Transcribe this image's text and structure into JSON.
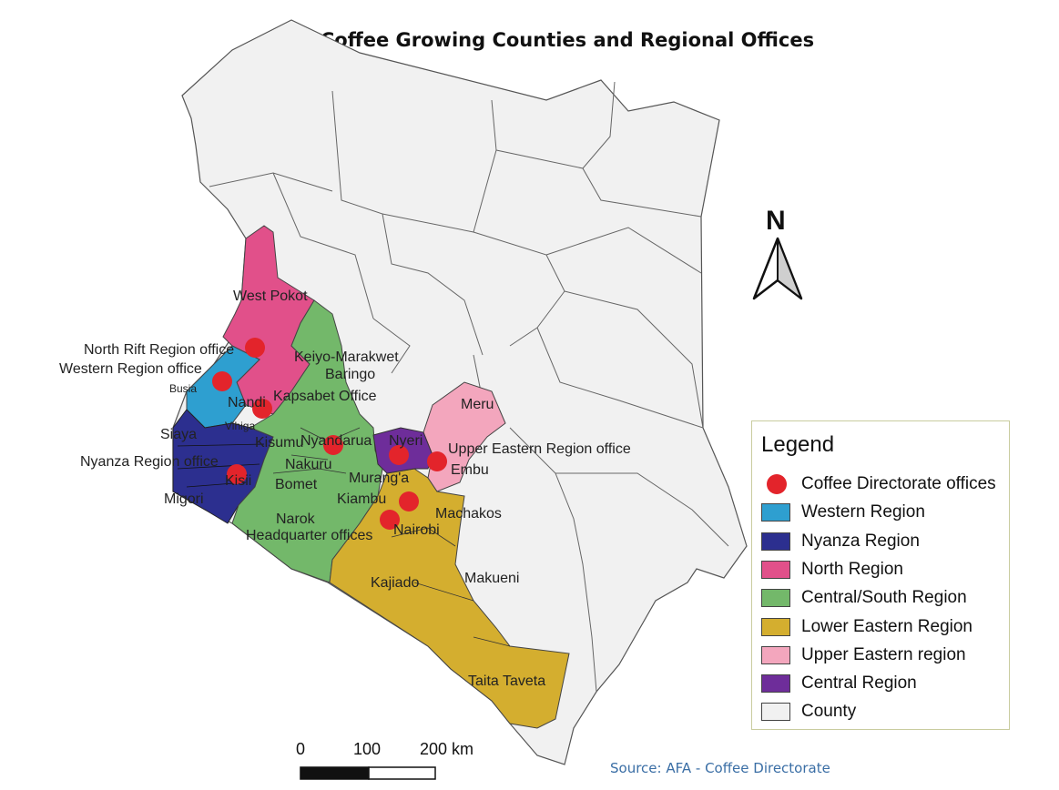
{
  "title": "Coffee Growing Counties and Regional Offices",
  "source": "Source: AFA - Coffee Directorate",
  "north_arrow": {
    "label": "N"
  },
  "scale_bar": {
    "labels": [
      "0",
      "100",
      "200 km"
    ]
  },
  "colors": {
    "western": "#2e9fd0",
    "nyanza": "#2c2f8f",
    "north": "#e1508a",
    "central_south": "#73b86a",
    "lower_eastern": "#d4ae2f",
    "upper_eastern": "#f3a6bd",
    "central": "#6e2d9a",
    "county": "#f1f1f1",
    "office": "#e3242b"
  },
  "legend": {
    "title": "Legend",
    "items": [
      {
        "label": "Coffee Directorate offices",
        "symbol": "dot",
        "color": "#e3242b"
      },
      {
        "label": "Western Region",
        "symbol": "swatch",
        "color": "#2e9fd0"
      },
      {
        "label": "Nyanza Region",
        "symbol": "swatch",
        "color": "#2c2f8f"
      },
      {
        "label": "North Region",
        "symbol": "swatch",
        "color": "#e1508a"
      },
      {
        "label": "Central/South Region",
        "symbol": "swatch",
        "color": "#73b86a"
      },
      {
        "label": "Lower Eastern Region",
        "symbol": "swatch",
        "color": "#d4ae2f"
      },
      {
        "label": "Upper Eastern region",
        "symbol": "swatch",
        "color": "#f3a6bd"
      },
      {
        "label": "Central Region",
        "symbol": "swatch",
        "color": "#6e2d9a"
      },
      {
        "label": "County",
        "symbol": "swatch",
        "color": "#f1f1f1"
      }
    ]
  },
  "labels": {
    "west_pokot": "West Pokot",
    "north_rift_office": "North Rift Region office",
    "keiyo_marakwet": "Keiyo-Marakwet",
    "western_office": "Western Region office",
    "baringo": "Baringo",
    "busia": "Busia",
    "nandi": "Nandi",
    "kapsabet_office": "Kapsabet Office",
    "meru": "Meru",
    "siaya": "Siaya",
    "vihiga": "Vihiga",
    "kisumu": "Kisumu",
    "nyandarua": "Nyandarua",
    "nyeri": "Nyeri",
    "upper_eastern_office": "Upper Eastern Region office",
    "nyanza_office": "Nyanza Region office",
    "nakuru": "Nakuru",
    "embu": "Embu",
    "kisii": "Kisii",
    "bomet": "Bomet",
    "murang_a": "Murang'a",
    "migori": "Migori",
    "kiambu": "Kiambu",
    "machakos": "Machakos",
    "narok": "Narok",
    "headquarter_offices": "Headquarter offices",
    "nairobi": "Nairobi",
    "kajiado": "Kajiado",
    "makueni": "Makueni",
    "taita_taveta": "Taita Taveta"
  }
}
